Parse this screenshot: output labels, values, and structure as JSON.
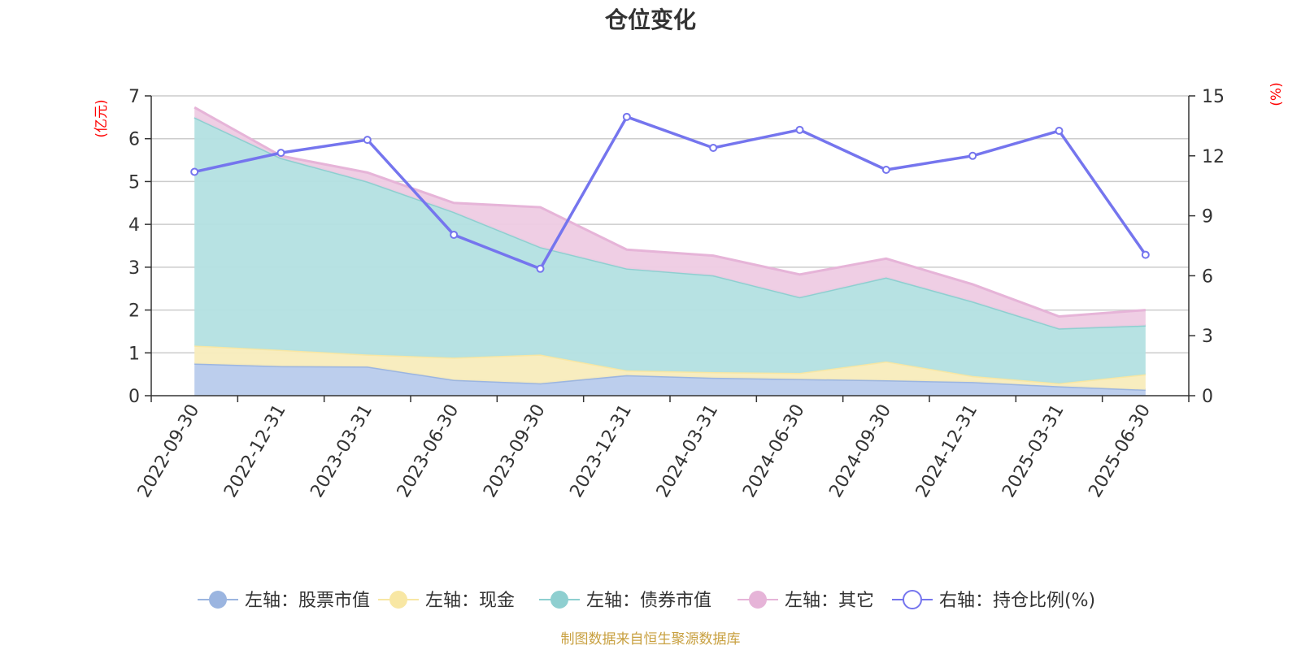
{
  "chart_data": {
    "type": "area",
    "title": "仓位变化",
    "y_left_unit": "(亿元)",
    "y_right_unit": "(%)",
    "x": [
      "2022-09-30",
      "2022-12-31",
      "2023-03-31",
      "2023-06-30",
      "2023-09-30",
      "2023-12-31",
      "2024-03-31",
      "2024-06-30",
      "2024-09-30",
      "2024-12-31",
      "2025-03-31",
      "2025-06-30"
    ],
    "y_left_ticks": [
      0,
      1,
      2,
      3,
      4,
      5,
      6,
      7
    ],
    "y_right_ticks": [
      0,
      3,
      6,
      9,
      12,
      15
    ],
    "y_left_range": [
      0,
      7
    ],
    "y_right_range": [
      0,
      15
    ],
    "series": [
      {
        "name": "左轴：股票市值",
        "axis": "left",
        "stack": true,
        "color": "#9bb5e0",
        "fill": "#b8cbec",
        "values": [
          0.75,
          0.69,
          0.68,
          0.37,
          0.29,
          0.48,
          0.42,
          0.39,
          0.36,
          0.32,
          0.22,
          0.14
        ]
      },
      {
        "name": "左轴：现金",
        "axis": "left",
        "stack": true,
        "color": "#f8e7a4",
        "fill": "#f8ecbc",
        "values": [
          0.42,
          0.38,
          0.28,
          0.52,
          0.67,
          0.11,
          0.13,
          0.14,
          0.44,
          0.14,
          0.07,
          0.36
        ]
      },
      {
        "name": "左轴：债券市值",
        "axis": "left",
        "stack": true,
        "color": "#8ecfd0",
        "fill": "#b3e0e1",
        "values": [
          5.33,
          4.48,
          4.04,
          3.4,
          2.51,
          2.38,
          2.26,
          1.77,
          1.96,
          1.74,
          1.28,
          1.14
        ]
      },
      {
        "name": "左轴：其它",
        "axis": "left",
        "stack": true,
        "color": "#e6b4d8",
        "fill": "#eecbe3",
        "values": [
          0.23,
          0.05,
          0.21,
          0.21,
          0.93,
          0.44,
          0.46,
          0.53,
          0.44,
          0.4,
          0.28,
          0.36
        ]
      },
      {
        "name": "右轴：持仓比例(%)",
        "axis": "right",
        "type": "line",
        "color": "#7575ee",
        "values": [
          11.2,
          12.15,
          12.8,
          8.05,
          6.35,
          13.95,
          12.4,
          13.3,
          11.3,
          12.0,
          13.25,
          7.05
        ]
      }
    ],
    "grid": true,
    "legend_position": "bottom"
  },
  "footer": {
    "source": "制图数据来自恒生聚源数据库"
  }
}
